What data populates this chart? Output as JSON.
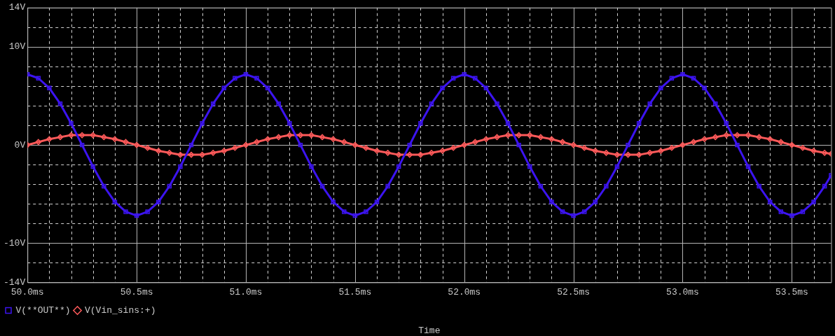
{
  "chart_data": {
    "type": "line",
    "xlabel": "Time",
    "x": [
      50.0,
      50.05,
      50.1,
      50.15,
      50.2,
      50.25,
      50.3,
      50.35,
      50.4,
      50.45,
      50.5,
      50.55,
      50.6,
      50.65,
      50.7,
      50.75,
      50.8,
      50.85,
      50.9,
      50.95,
      51.0,
      51.05,
      51.1,
      51.15,
      51.2,
      51.25,
      51.3,
      51.35,
      51.4,
      51.45,
      51.5,
      51.55,
      51.6,
      51.65,
      51.7,
      51.75,
      51.8,
      51.85,
      51.9,
      51.95,
      52.0,
      52.05,
      52.1,
      52.15,
      52.2,
      52.25,
      52.3,
      52.35,
      52.4,
      52.45,
      52.5,
      52.55,
      52.6,
      52.65,
      52.7,
      52.75,
      52.8,
      52.85,
      52.9,
      52.95,
      53.0,
      53.05,
      53.1,
      53.15,
      53.2,
      53.25,
      53.3,
      53.35,
      53.4,
      53.45,
      53.5,
      53.55,
      53.6,
      53.65,
      53.68
    ],
    "series": [
      {
        "name": "V(**OUT**)",
        "color": "#3c14f0",
        "marker": "square",
        "values": [
          7.2,
          6.8,
          5.8,
          4.2,
          2.2,
          0,
          -2.2,
          -4.2,
          -5.8,
          -6.8,
          -7.2,
          -6.8,
          -5.8,
          -4.2,
          -2.2,
          0,
          2.2,
          4.2,
          5.8,
          6.8,
          7.2,
          6.8,
          5.8,
          4.2,
          2.2,
          0,
          -2.2,
          -4.2,
          -5.8,
          -6.8,
          -7.2,
          -6.8,
          -5.8,
          -4.2,
          -2.2,
          0,
          2.2,
          4.2,
          5.8,
          6.8,
          7.2,
          6.8,
          5.8,
          4.2,
          2.2,
          0,
          -2.2,
          -4.2,
          -5.8,
          -6.8,
          -7.2,
          -6.8,
          -5.8,
          -4.2,
          -2.2,
          0,
          2.2,
          4.2,
          5.8,
          6.8,
          7.2,
          6.8,
          5.8,
          4.2,
          2.2,
          0,
          -2.2,
          -4.2,
          -5.8,
          -6.8,
          -7.2,
          -6.8,
          -5.8,
          -4.2,
          -3.1
        ]
      },
      {
        "name": "V(Vin_sins:+)",
        "color": "#ff5a5a",
        "marker": "diamond",
        "values": [
          0,
          0.3,
          0.6,
          0.8,
          1.0,
          1.0,
          1.0,
          0.8,
          0.6,
          0.3,
          0,
          -0.3,
          -0.6,
          -0.8,
          -1.0,
          -1.0,
          -1.0,
          -0.8,
          -0.6,
          -0.3,
          0,
          0.3,
          0.6,
          0.8,
          1.0,
          1.0,
          1.0,
          0.8,
          0.6,
          0.3,
          0,
          -0.3,
          -0.6,
          -0.8,
          -1.0,
          -1.0,
          -1.0,
          -0.8,
          -0.6,
          -0.3,
          0,
          0.3,
          0.6,
          0.8,
          1.0,
          1.0,
          1.0,
          0.8,
          0.6,
          0.3,
          0,
          -0.3,
          -0.6,
          -0.8,
          -1.0,
          -1.0,
          -1.0,
          -0.8,
          -0.6,
          -0.3,
          0,
          0.3,
          0.6,
          0.8,
          1.0,
          1.0,
          1.0,
          0.8,
          0.6,
          0.3,
          0,
          -0.3,
          -0.6,
          -0.8,
          -0.9
        ]
      }
    ],
    "xlim": [
      50.0,
      53.68
    ],
    "xticks": [
      {
        "value": 50.0,
        "label": "50.0ms"
      },
      {
        "value": 50.1,
        "label": null
      },
      {
        "value": 50.2,
        "label": null
      },
      {
        "value": 50.3,
        "label": null
      },
      {
        "value": 50.4,
        "label": null
      },
      {
        "value": 50.5,
        "label": "50.5ms"
      },
      {
        "value": 50.6,
        "label": null
      },
      {
        "value": 50.7,
        "label": null
      },
      {
        "value": 50.8,
        "label": null
      },
      {
        "value": 50.9,
        "label": null
      },
      {
        "value": 51.0,
        "label": "51.0ms"
      },
      {
        "value": 51.1,
        "label": null
      },
      {
        "value": 51.2,
        "label": null
      },
      {
        "value": 51.3,
        "label": null
      },
      {
        "value": 51.4,
        "label": null
      },
      {
        "value": 51.5,
        "label": "51.5ms"
      },
      {
        "value": 51.6,
        "label": null
      },
      {
        "value": 51.7,
        "label": null
      },
      {
        "value": 51.8,
        "label": null
      },
      {
        "value": 51.9,
        "label": null
      },
      {
        "value": 52.0,
        "label": "52.0ms"
      },
      {
        "value": 52.1,
        "label": null
      },
      {
        "value": 52.2,
        "label": null
      },
      {
        "value": 52.3,
        "label": null
      },
      {
        "value": 52.4,
        "label": null
      },
      {
        "value": 52.5,
        "label": "52.5ms"
      },
      {
        "value": 52.6,
        "label": null
      },
      {
        "value": 52.7,
        "label": null
      },
      {
        "value": 52.8,
        "label": null
      },
      {
        "value": 52.9,
        "label": null
      },
      {
        "value": 53.0,
        "label": "53.0ms"
      },
      {
        "value": 53.1,
        "label": null
      },
      {
        "value": 53.2,
        "label": null
      },
      {
        "value": 53.3,
        "label": null
      },
      {
        "value": 53.4,
        "label": null
      },
      {
        "value": 53.5,
        "label": "53.5ms"
      },
      {
        "value": 53.6,
        "label": null
      }
    ],
    "ylim": [
      -14,
      14
    ],
    "yticks": [
      {
        "value": -14,
        "label": "-14V"
      },
      {
        "value": -12,
        "label": null
      },
      {
        "value": -10,
        "label": "-10V"
      },
      {
        "value": -8,
        "label": null
      },
      {
        "value": -6,
        "label": null
      },
      {
        "value": -4,
        "label": null
      },
      {
        "value": -2,
        "label": null
      },
      {
        "value": 0,
        "label": "0V"
      },
      {
        "value": 2,
        "label": null
      },
      {
        "value": 4,
        "label": null
      },
      {
        "value": 6,
        "label": null
      },
      {
        "value": 8,
        "label": null
      },
      {
        "value": 10,
        "label": "10V"
      },
      {
        "value": 12,
        "label": null
      },
      {
        "value": 14,
        "label": "14V"
      }
    ],
    "grid": true,
    "legend": "bottom left",
    "line_style": "solid"
  }
}
